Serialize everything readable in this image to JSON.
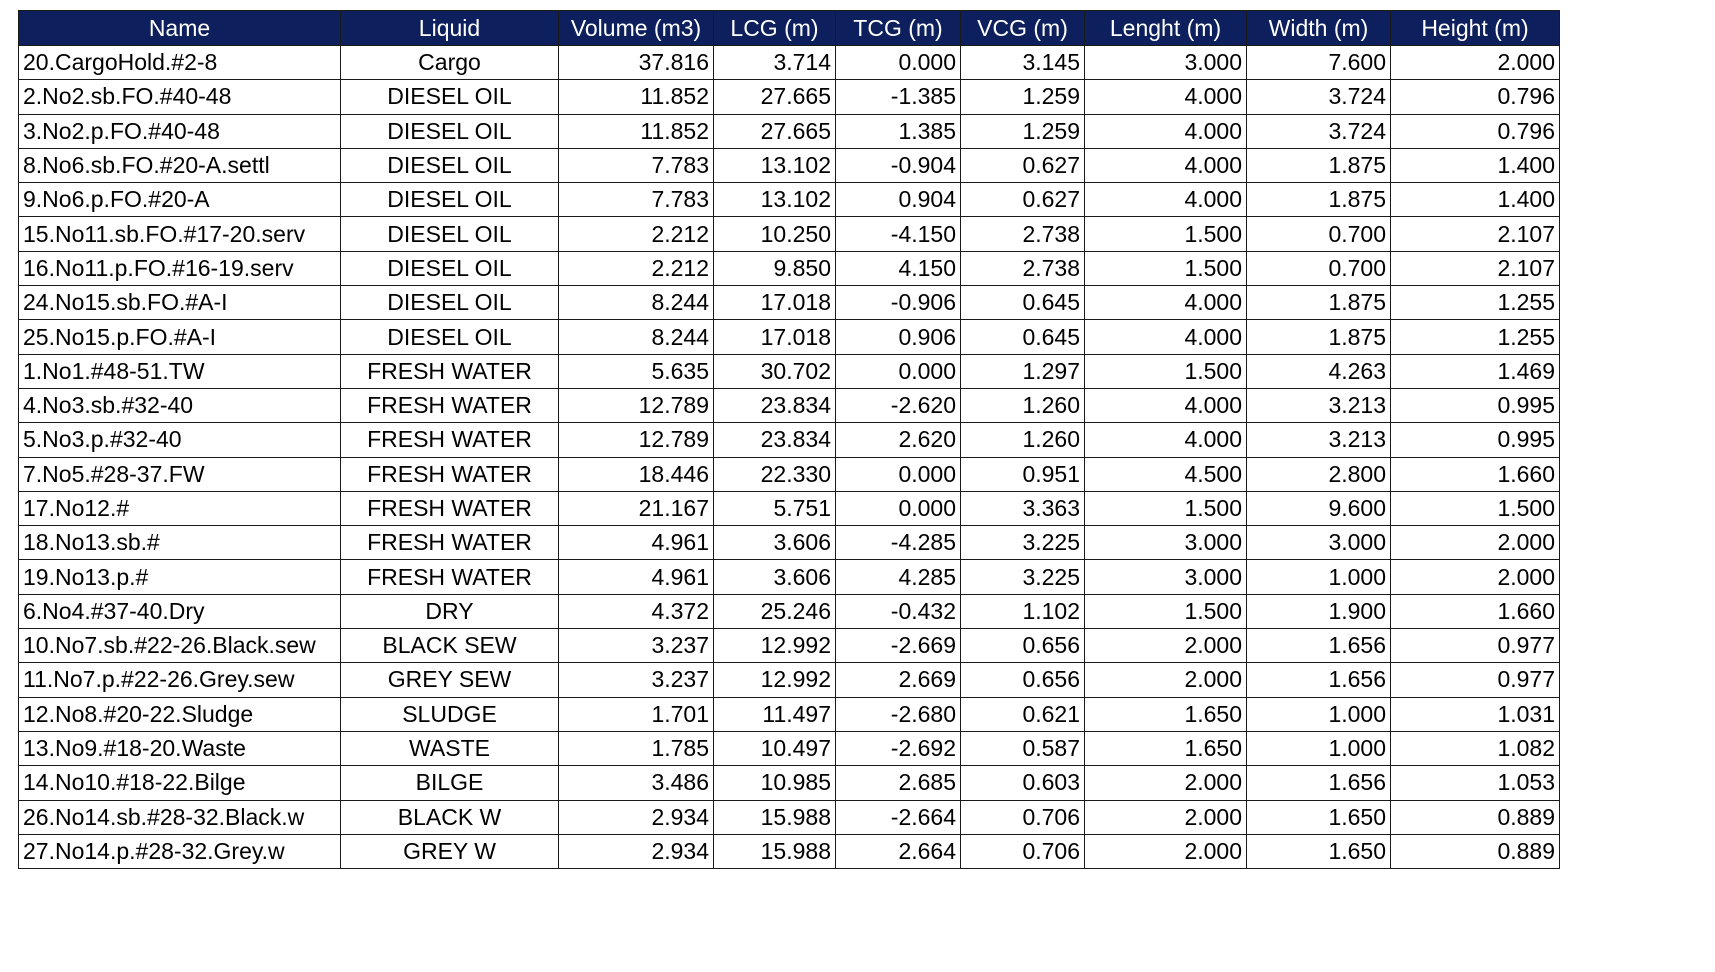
{
  "columns": [
    "Name",
    "Liquid",
    "Volume (m3)",
    "LCG (m)",
    "TCG (m)",
    "VCG (m)",
    "Lenght (m)",
    "Width (m)",
    "Height (m)"
  ],
  "rows": [
    [
      "20.CargoHold.#2-8",
      "Cargo",
      "37.816",
      "3.714",
      "0.000",
      "3.145",
      "3.000",
      "7.600",
      "2.000"
    ],
    [
      "2.No2.sb.FO.#40-48",
      "DIESEL OIL",
      "11.852",
      "27.665",
      "-1.385",
      "1.259",
      "4.000",
      "3.724",
      "0.796"
    ],
    [
      "3.No2.p.FO.#40-48",
      "DIESEL OIL",
      "11.852",
      "27.665",
      "1.385",
      "1.259",
      "4.000",
      "3.724",
      "0.796"
    ],
    [
      "8.No6.sb.FO.#20-A.settl",
      "DIESEL OIL",
      "7.783",
      "13.102",
      "-0.904",
      "0.627",
      "4.000",
      "1.875",
      "1.400"
    ],
    [
      "9.No6.p.FO.#20-A",
      "DIESEL OIL",
      "7.783",
      "13.102",
      "0.904",
      "0.627",
      "4.000",
      "1.875",
      "1.400"
    ],
    [
      "15.No11.sb.FO.#17-20.serv",
      "DIESEL OIL",
      "2.212",
      "10.250",
      "-4.150",
      "2.738",
      "1.500",
      "0.700",
      "2.107"
    ],
    [
      "16.No11.p.FO.#16-19.serv",
      "DIESEL OIL",
      "2.212",
      "9.850",
      "4.150",
      "2.738",
      "1.500",
      "0.700",
      "2.107"
    ],
    [
      "24.No15.sb.FO.#A-I",
      "DIESEL OIL",
      "8.244",
      "17.018",
      "-0.906",
      "0.645",
      "4.000",
      "1.875",
      "1.255"
    ],
    [
      "25.No15.p.FO.#A-I",
      "DIESEL OIL",
      "8.244",
      "17.018",
      "0.906",
      "0.645",
      "4.000",
      "1.875",
      "1.255"
    ],
    [
      "1.No1.#48-51.TW",
      "FRESH WATER",
      "5.635",
      "30.702",
      "0.000",
      "1.297",
      "1.500",
      "4.263",
      "1.469"
    ],
    [
      "4.No3.sb.#32-40",
      "FRESH WATER",
      "12.789",
      "23.834",
      "-2.620",
      "1.260",
      "4.000",
      "3.213",
      "0.995"
    ],
    [
      "5.No3.p.#32-40",
      "FRESH WATER",
      "12.789",
      "23.834",
      "2.620",
      "1.260",
      "4.000",
      "3.213",
      "0.995"
    ],
    [
      "7.No5.#28-37.FW",
      "FRESH WATER",
      "18.446",
      "22.330",
      "0.000",
      "0.951",
      "4.500",
      "2.800",
      "1.660"
    ],
    [
      "17.No12.#",
      "FRESH WATER",
      "21.167",
      "5.751",
      "0.000",
      "3.363",
      "1.500",
      "9.600",
      "1.500"
    ],
    [
      "18.No13.sb.#",
      "FRESH WATER",
      "4.961",
      "3.606",
      "-4.285",
      "3.225",
      "3.000",
      "3.000",
      "2.000"
    ],
    [
      "19.No13.p.#",
      "FRESH WATER",
      "4.961",
      "3.606",
      "4.285",
      "3.225",
      "3.000",
      "1.000",
      "2.000"
    ],
    [
      "6.No4.#37-40.Dry",
      "DRY",
      "4.372",
      "25.246",
      "-0.432",
      "1.102",
      "1.500",
      "1.900",
      "1.660"
    ],
    [
      "10.No7.sb.#22-26.Black.sew",
      "BLACK SEW",
      "3.237",
      "12.992",
      "-2.669",
      "0.656",
      "2.000",
      "1.656",
      "0.977"
    ],
    [
      "11.No7.p.#22-26.Grey.sew",
      "GREY SEW",
      "3.237",
      "12.992",
      "2.669",
      "0.656",
      "2.000",
      "1.656",
      "0.977"
    ],
    [
      "12.No8.#20-22.Sludge",
      "SLUDGE",
      "1.701",
      "11.497",
      "-2.680",
      "0.621",
      "1.650",
      "1.000",
      "1.031"
    ],
    [
      "13.No9.#18-20.Waste",
      "WASTE",
      "1.785",
      "10.497",
      "-2.692",
      "0.587",
      "1.650",
      "1.000",
      "1.082"
    ],
    [
      "14.No10.#18-22.Bilge",
      "BILGE",
      "3.486",
      "10.985",
      "2.685",
      "0.603",
      "2.000",
      "1.656",
      "1.053"
    ],
    [
      "26.No14.sb.#28-32.Black.w",
      "BLACK W",
      "2.934",
      "15.988",
      "-2.664",
      "0.706",
      "2.000",
      "1.650",
      "0.889"
    ],
    [
      "27.No14.p.#28-32.Grey.w",
      "GREY W",
      "2.934",
      "15.988",
      "2.664",
      "0.706",
      "2.000",
      "1.650",
      "0.889"
    ]
  ],
  "colors": {
    "header_background": "#0d1f5c",
    "header_text": "#ffffff",
    "grid": "#1a1a1a"
  }
}
